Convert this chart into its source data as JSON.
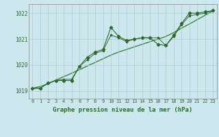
{
  "title": "Graphe pression niveau de la mer (hPa)",
  "bg_color": "#cce8ee",
  "grid_color": "#aacccc",
  "line_color_main": "#2d6a2d",
  "line_color_smooth": "#3a8a3a",
  "ylim": [
    1018.7,
    1022.35
  ],
  "xlim": [
    -0.5,
    23.5
  ],
  "yticks": [
    1019,
    1020,
    1021,
    1022
  ],
  "xticks": [
    0,
    1,
    2,
    3,
    4,
    5,
    6,
    7,
    8,
    9,
    10,
    11,
    12,
    13,
    14,
    15,
    16,
    17,
    18,
    19,
    20,
    21,
    22,
    23
  ],
  "series1": [
    1019.1,
    1019.1,
    1019.3,
    1019.4,
    1019.4,
    1019.4,
    1019.95,
    1020.3,
    1020.5,
    1020.6,
    1021.45,
    1021.1,
    1020.95,
    1021.0,
    1021.05,
    1021.05,
    1020.8,
    1020.75,
    1021.15,
    1021.6,
    1022.0,
    1022.0,
    1022.05,
    1022.1
  ],
  "series2": [
    1019.1,
    1019.1,
    1019.3,
    1019.4,
    1019.45,
    1019.45,
    1019.95,
    1020.2,
    1020.45,
    1020.55,
    1021.15,
    1021.05,
    1020.9,
    1021.0,
    1021.05,
    1021.05,
    1021.05,
    1020.75,
    1021.1,
    1021.55,
    1021.9,
    1021.95,
    1022.0,
    1022.1
  ],
  "smooth_series": [
    1019.1,
    1019.17,
    1019.27,
    1019.42,
    1019.55,
    1019.68,
    1019.82,
    1019.96,
    1020.1,
    1020.24,
    1020.38,
    1020.5,
    1020.6,
    1020.7,
    1020.8,
    1020.9,
    1021.0,
    1021.1,
    1021.25,
    1021.42,
    1021.58,
    1021.75,
    1021.92,
    1022.08
  ]
}
